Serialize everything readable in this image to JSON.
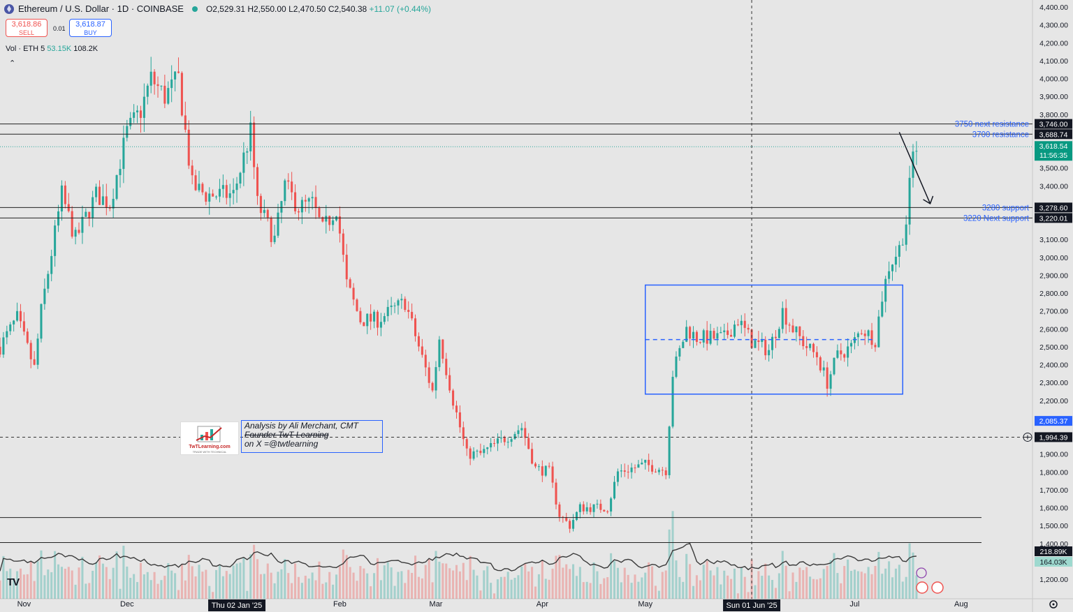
{
  "header": {
    "symbol": "Ethereum / U.S. Dollar · 1D · COINBASE",
    "open": "O2,529.31",
    "high": "H2,550.00",
    "low": "L2,470.50",
    "close": "C2,540.38",
    "change": "+11.07 (+0.44%)"
  },
  "trade": {
    "sell_price": "3,618.86",
    "sell_label": "SELL",
    "spread": "0.01",
    "buy_price": "3,618.87",
    "buy_label": "BUY"
  },
  "volume": {
    "label": "Vol · ETH 5",
    "v1": "53.15K",
    "v2": "108.2K"
  },
  "annotation": {
    "line1": "Analysis by Ali Merchant, CMT",
    "line2": "Founder TwT Learning",
    "line3": "on X =@twtlearning"
  },
  "logo": {
    "name": "TwTLearning.com",
    "tag": "TRADE WITH TECHNICAL"
  },
  "colors": {
    "up": "#26a69a",
    "down": "#ef5350",
    "accent": "#2962ff",
    "background": "#e6e6e6"
  },
  "chart_data": {
    "type": "candlestick",
    "y_axis": {
      "range": [
        1150,
        4420
      ],
      "ticks": [
        4400,
        4300,
        4200,
        4100,
        4000,
        3900,
        3800,
        3500,
        3400,
        3100,
        3000,
        2900,
        2800,
        2700,
        2600,
        2500,
        2400,
        2300,
        2200,
        1900,
        1800,
        1700,
        1600,
        1500,
        1400,
        1200
      ],
      "tick_labels": [
        "4,400.00",
        "4,300.00",
        "4,200.00",
        "4,100.00",
        "4,000.00",
        "3,900.00",
        "3,800.00",
        "3,500.00",
        "3,400.00",
        "3,100.00",
        "3,000.00",
        "2,900.00",
        "2,800.00",
        "2,700.00",
        "2,600.00",
        "2,500.00",
        "2,400.00",
        "2,300.00",
        "2,200.00",
        "1,900.00",
        "1,800.00",
        "1,700.00",
        "1,600.00",
        "1,500.00",
        "1,400.00",
        "1,200.00"
      ]
    },
    "x_axis": {
      "labels": [
        {
          "text": "Nov",
          "date": "2024-11-01"
        },
        {
          "text": "Dec",
          "date": "2024-12-01"
        },
        {
          "text": "Feb",
          "date": "2025-02-01"
        },
        {
          "text": "Mar",
          "date": "2025-03-01"
        },
        {
          "text": "Apr",
          "date": "2025-04-01"
        },
        {
          "text": "May",
          "date": "2025-05-01"
        },
        {
          "text": "Jul",
          "date": "2025-07-01"
        },
        {
          "text": "Aug",
          "date": "2025-08-01"
        }
      ],
      "highlighted": [
        {
          "text": "Thu 02 Jan '25",
          "date": "2025-01-02"
        },
        {
          "text": "Sun 01 Jun '25",
          "date": "2025-06-01"
        }
      ],
      "start_date": "2024-10-25",
      "end_date": "2025-08-10"
    },
    "price_lines": [
      {
        "price": 3746.0,
        "label": "3750 next resistance",
        "tag": "3,746.00"
      },
      {
        "price": 3688.74,
        "label": "3700 resistance",
        "tag": "3,688.74"
      },
      {
        "price": 3278.6,
        "label": "3280 support",
        "tag": "3,278.60"
      },
      {
        "price": 3220.01,
        "label": "3220 Next support",
        "tag": "3,220.01"
      },
      {
        "price": 1545,
        "label": "",
        "tag": ""
      },
      {
        "price": 1405,
        "label": "",
        "tag": ""
      }
    ],
    "last_price": {
      "price": 3618.54,
      "tag": "3,618.54",
      "countdown": "11:56:35"
    },
    "crosshair": {
      "price": 1994.39,
      "tag": "1,994.39",
      "date": "2025-06-01"
    },
    "extra_tag": {
      "price": 2085.37,
      "tag": "2,085.37"
    },
    "volume_tags": [
      "218.89K",
      "164.03K"
    ],
    "range_box": {
      "start": "2025-05-01",
      "end": "2025-07-15",
      "low": 2235,
      "high": 2845,
      "mid": 2540
    },
    "arrow": {
      "from_date": "2025-07-14",
      "from_price": 3700,
      "to_date": "2025-07-23",
      "to_price": 3300
    },
    "anchors": [
      [
        "2024-10-25",
        2500
      ],
      [
        "2024-10-30",
        2660
      ],
      [
        "2024-11-04",
        2380
      ],
      [
        "2024-11-06",
        2700
      ],
      [
        "2024-11-12",
        3350
      ],
      [
        "2024-11-16",
        3100
      ],
      [
        "2024-11-22",
        3350
      ],
      [
        "2024-11-26",
        3300
      ],
      [
        "2024-12-01",
        3700
      ],
      [
        "2024-12-05",
        3820
      ],
      [
        "2024-12-08",
        4000
      ],
      [
        "2024-12-12",
        3900
      ],
      [
        "2024-12-16",
        4000
      ],
      [
        "2024-12-20",
        3400
      ],
      [
        "2024-12-24",
        3350
      ],
      [
        "2024-12-28",
        3350
      ],
      [
        "2025-01-01",
        3350
      ],
      [
        "2025-01-06",
        3700
      ],
      [
        "2025-01-08",
        3300
      ],
      [
        "2025-01-13",
        3100
      ],
      [
        "2025-01-16",
        3400
      ],
      [
        "2025-01-20",
        3280
      ],
      [
        "2025-01-24",
        3300
      ],
      [
        "2025-01-27",
        3150
      ],
      [
        "2025-01-31",
        3280
      ],
      [
        "2025-02-03",
        2850
      ],
      [
        "2025-02-07",
        2650
      ],
      [
        "2025-02-12",
        2650
      ],
      [
        "2025-02-16",
        2700
      ],
      [
        "2025-02-20",
        2750
      ],
      [
        "2025-02-24",
        2500
      ],
      [
        "2025-02-28",
        2250
      ],
      [
        "2025-03-02",
        2550
      ],
      [
        "2025-03-06",
        2200
      ],
      [
        "2025-03-10",
        1900
      ],
      [
        "2025-03-14",
        1900
      ],
      [
        "2025-03-18",
        1950
      ],
      [
        "2025-03-22",
        2000
      ],
      [
        "2025-03-26",
        2050
      ],
      [
        "2025-03-30",
        1820
      ],
      [
        "2025-04-03",
        1800
      ],
      [
        "2025-04-06",
        1560
      ],
      [
        "2025-04-09",
        1500
      ],
      [
        "2025-04-12",
        1600
      ],
      [
        "2025-04-16",
        1600
      ],
      [
        "2025-04-20",
        1600
      ],
      [
        "2025-04-23",
        1800
      ],
      [
        "2025-04-27",
        1820
      ],
      [
        "2025-05-01",
        1840
      ],
      [
        "2025-05-07",
        1810
      ],
      [
        "2025-05-09",
        2350
      ],
      [
        "2025-05-13",
        2600
      ],
      [
        "2025-05-16",
        2550
      ],
      [
        "2025-05-20",
        2550
      ],
      [
        "2025-05-24",
        2550
      ],
      [
        "2025-05-28",
        2650
      ],
      [
        "2025-06-01",
        2530
      ],
      [
        "2025-06-06",
        2480
      ],
      [
        "2025-06-10",
        2700
      ],
      [
        "2025-06-13",
        2600
      ],
      [
        "2025-06-17",
        2500
      ],
      [
        "2025-06-20",
        2450
      ],
      [
        "2025-06-23",
        2300
      ],
      [
        "2025-06-26",
        2450
      ],
      [
        "2025-06-30",
        2500
      ],
      [
        "2025-07-03",
        2600
      ],
      [
        "2025-07-07",
        2540
      ],
      [
        "2025-07-09",
        2780
      ],
      [
        "2025-07-11",
        2950
      ],
      [
        "2025-07-14",
        3050
      ],
      [
        "2025-07-16",
        3200
      ],
      [
        "2025-07-18",
        3580
      ],
      [
        "2025-07-19",
        3618
      ]
    ]
  }
}
